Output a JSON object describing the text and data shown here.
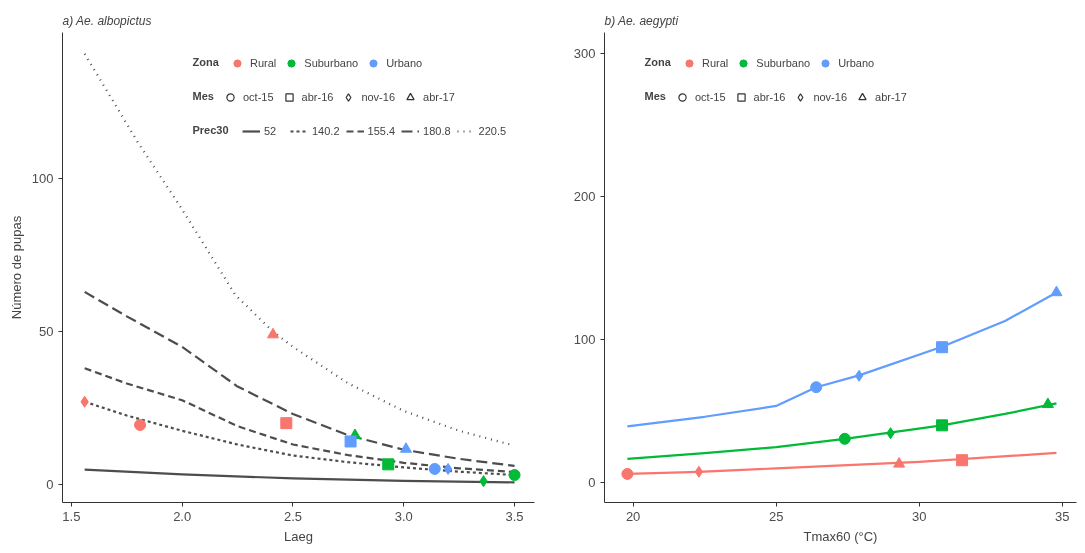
{
  "chart_data": [
    {
      "type": "scatter",
      "title": "a) Ae. albopictus",
      "xlabel": "Laeg",
      "ylabel": "Número de pupas",
      "xlim": [
        1.46,
        3.59
      ],
      "ylim": [
        -6,
        148
      ],
      "xticks": [
        1.5,
        {
          "value": 2,
          "label": "2.0"
        },
        2.5,
        {
          "value": 3,
          "label": "3.0"
        },
        3.5
      ],
      "yticks": [
        0,
        50,
        100
      ],
      "grid": false,
      "legend": "top right",
      "legend_title": [
        "Zona",
        "Mes",
        "Prec30"
      ],
      "series": [
        {
          "type": "line",
          "name": "52",
          "color": "#4d4d4d",
          "line_style": "solid",
          "x": [
            1.56,
            2.0,
            2.5,
            3.0,
            3.5
          ],
          "values": [
            4.8,
            3.2,
            1.9,
            1.1,
            0.6
          ]
        },
        {
          "type": "line",
          "name": "140.2",
          "color": "#4d4d4d",
          "line_style": "shortdash",
          "x": [
            1.56,
            1.75,
            2.0,
            2.25,
            2.5,
            2.75,
            3.0,
            3.25,
            3.5
          ],
          "values": [
            27,
            22.5,
            17.5,
            13,
            9.4,
            7.2,
            5.5,
            4.1,
            3
          ]
        },
        {
          "type": "line",
          "name": "155.4",
          "color": "#4d4d4d",
          "line_style": "dashed",
          "x": [
            1.56,
            1.75,
            2.0,
            2.25,
            2.5,
            2.75,
            3.0,
            3.25,
            3.5
          ],
          "values": [
            38,
            33,
            27.5,
            19,
            13,
            9.5,
            7,
            5.2,
            4
          ]
        },
        {
          "type": "line",
          "name": "180.8",
          "color": "#4d4d4d",
          "line_style": "longdash",
          "x": [
            1.56,
            1.75,
            2.0,
            2.25,
            2.5,
            2.75,
            3.0,
            3.25,
            3.5
          ],
          "values": [
            63,
            55,
            45,
            32,
            23,
            16,
            11.3,
            8.3,
            6
          ]
        },
        {
          "type": "line",
          "name": "220.5",
          "color": "#4d4d4d",
          "line_style": "dotted",
          "x": [
            1.56,
            1.8,
            2.0,
            2.24,
            2.41,
            2.5,
            2.75,
            3.0,
            3.25,
            3.48
          ],
          "values": [
            141,
            112,
            90,
            62,
            50,
            45,
            33,
            24,
            17.5,
            13
          ]
        },
        {
          "type": "scatter",
          "color": "#f8766d",
          "marker": "circle",
          "x": [
            1.81
          ],
          "values": [
            19.4
          ]
        },
        {
          "type": "scatter",
          "color": "#f8766d",
          "marker": "square",
          "x": [
            2.47
          ],
          "values": [
            20
          ]
        },
        {
          "type": "scatter",
          "color": "#f8766d",
          "marker": "diamond",
          "x": [
            1.56
          ],
          "values": [
            27
          ]
        },
        {
          "type": "scatter",
          "color": "#f8766d",
          "marker": "triangle",
          "x": [
            2.41
          ],
          "values": [
            49
          ]
        },
        {
          "type": "scatter",
          "color": "#00ba38",
          "marker": "circle",
          "x": [
            3.5
          ],
          "values": [
            3
          ]
        },
        {
          "type": "scatter",
          "color": "#00ba38",
          "marker": "square",
          "x": [
            2.93
          ],
          "values": [
            6.5
          ]
        },
        {
          "type": "scatter",
          "color": "#00ba38",
          "marker": "diamond",
          "x": [
            3.36
          ],
          "values": [
            1
          ]
        },
        {
          "type": "scatter",
          "color": "#00ba38",
          "marker": "triangle",
          "x": [
            2.78
          ],
          "values": [
            16
          ]
        },
        {
          "type": "scatter",
          "color": "#619cff",
          "marker": "circle",
          "x": [
            3.14
          ],
          "values": [
            5
          ]
        },
        {
          "type": "scatter",
          "color": "#619cff",
          "marker": "square",
          "x": [
            2.76
          ],
          "values": [
            14
          ]
        },
        {
          "type": "scatter",
          "color": "#619cff",
          "marker": "diamond",
          "x": [
            3.2
          ],
          "values": [
            5
          ]
        },
        {
          "type": "scatter",
          "color": "#619cff",
          "marker": "triangle",
          "x": [
            3.01
          ],
          "values": [
            11.5
          ]
        },
        {
          "name": "Rural",
          "color": "#f8766d"
        },
        {
          "name": "Suburbano",
          "color": "#00ba38"
        },
        {
          "name": "Urbano",
          "color": "#619cff"
        },
        {
          "name": "oct-15",
          "color": "#333333",
          "marker": "circle"
        },
        {
          "name": "abr-16",
          "color": "#333333",
          "marker": "square"
        },
        {
          "name": "nov-16",
          "color": "#333333",
          "marker": "diamond"
        },
        {
          "name": "abr-17",
          "color": "#333333",
          "marker": "triangle"
        }
      ]
    },
    {
      "type": "scatter",
      "title": "b) Ae. aegypti",
      "xlabel": "Tmax60 (°C)",
      "xlim": [
        19.0,
        35.5
      ],
      "ylim": [
        -14,
        315
      ],
      "xticks": [
        20,
        25,
        30,
        35
      ],
      "yticks": [
        0,
        100,
        200,
        300
      ],
      "grid": false,
      "legend": "top left",
      "legend_title": [
        "Zona",
        "Mes"
      ],
      "series": [
        {
          "type": "line",
          "color": "#f8766d",
          "line_style": "solid",
          "x": [
            19.8,
            22.3,
            25,
            30,
            34.8
          ],
          "values": [
            6,
            7.5,
            9.9,
            14.5,
            20.7
          ]
        },
        {
          "type": "line",
          "color": "#00ba38",
          "line_style": "solid",
          "x": [
            19.8,
            22.5,
            25,
            27.4,
            30.8,
            33,
            34.8
          ],
          "values": [
            16.6,
            20.5,
            24.8,
            30.6,
            40,
            48,
            55.4
          ]
        },
        {
          "type": "line",
          "color": "#619cff",
          "line_style": "solid",
          "x": [
            19.8,
            22.5,
            25,
            26.4,
            27.9,
            30.8,
            33,
            34.8
          ],
          "values": [
            39.3,
            46,
            53.6,
            66.7,
            75,
            95,
            113,
            133
          ]
        },
        {
          "type": "scatter",
          "color": "#f8766d",
          "marker": "circle",
          "x": [
            19.8
          ],
          "values": [
            6
          ]
        },
        {
          "type": "scatter",
          "color": "#f8766d",
          "marker": "square",
          "x": [
            31.5
          ],
          "values": [
            15.6
          ]
        },
        {
          "type": "scatter",
          "color": "#f8766d",
          "marker": "diamond",
          "x": [
            22.3
          ],
          "values": [
            7.5
          ]
        },
        {
          "type": "scatter",
          "color": "#f8766d",
          "marker": "triangle",
          "x": [
            29.3
          ],
          "values": [
            13
          ]
        },
        {
          "type": "scatter",
          "color": "#00ba38",
          "marker": "circle",
          "x": [
            27.4
          ],
          "values": [
            30.6
          ]
        },
        {
          "type": "scatter",
          "color": "#00ba38",
          "marker": "square",
          "x": [
            30.8
          ],
          "values": [
            40
          ]
        },
        {
          "type": "scatter",
          "color": "#00ba38",
          "marker": "diamond",
          "x": [
            29.0
          ],
          "values": [
            34.5
          ]
        },
        {
          "type": "scatter",
          "color": "#00ba38",
          "marker": "triangle",
          "x": [
            34.5
          ],
          "values": [
            54.7
          ]
        },
        {
          "type": "scatter",
          "color": "#619cff",
          "marker": "circle",
          "x": [
            26.4
          ],
          "values": [
            66.7
          ]
        },
        {
          "type": "scatter",
          "color": "#619cff",
          "marker": "square",
          "x": [
            30.8
          ],
          "values": [
            94.7
          ]
        },
        {
          "type": "scatter",
          "color": "#619cff",
          "marker": "diamond",
          "x": [
            27.9
          ],
          "values": [
            74.7
          ]
        },
        {
          "type": "scatter",
          "color": "#619cff",
          "marker": "triangle",
          "x": [
            34.8
          ],
          "values": [
            133
          ]
        },
        {
          "name": "Rural",
          "color": "#f8766d"
        },
        {
          "name": "Suburbano",
          "color": "#00ba38"
        },
        {
          "name": "Urbano",
          "color": "#619cff"
        },
        {
          "name": "oct-15",
          "color": "#333333",
          "marker": "circle"
        },
        {
          "name": "abr-16",
          "color": "#333333",
          "marker": "square"
        },
        {
          "name": "nov-16",
          "color": "#333333",
          "marker": "diamond"
        },
        {
          "name": "abr-17",
          "color": "#333333",
          "marker": "triangle"
        }
      ]
    }
  ]
}
